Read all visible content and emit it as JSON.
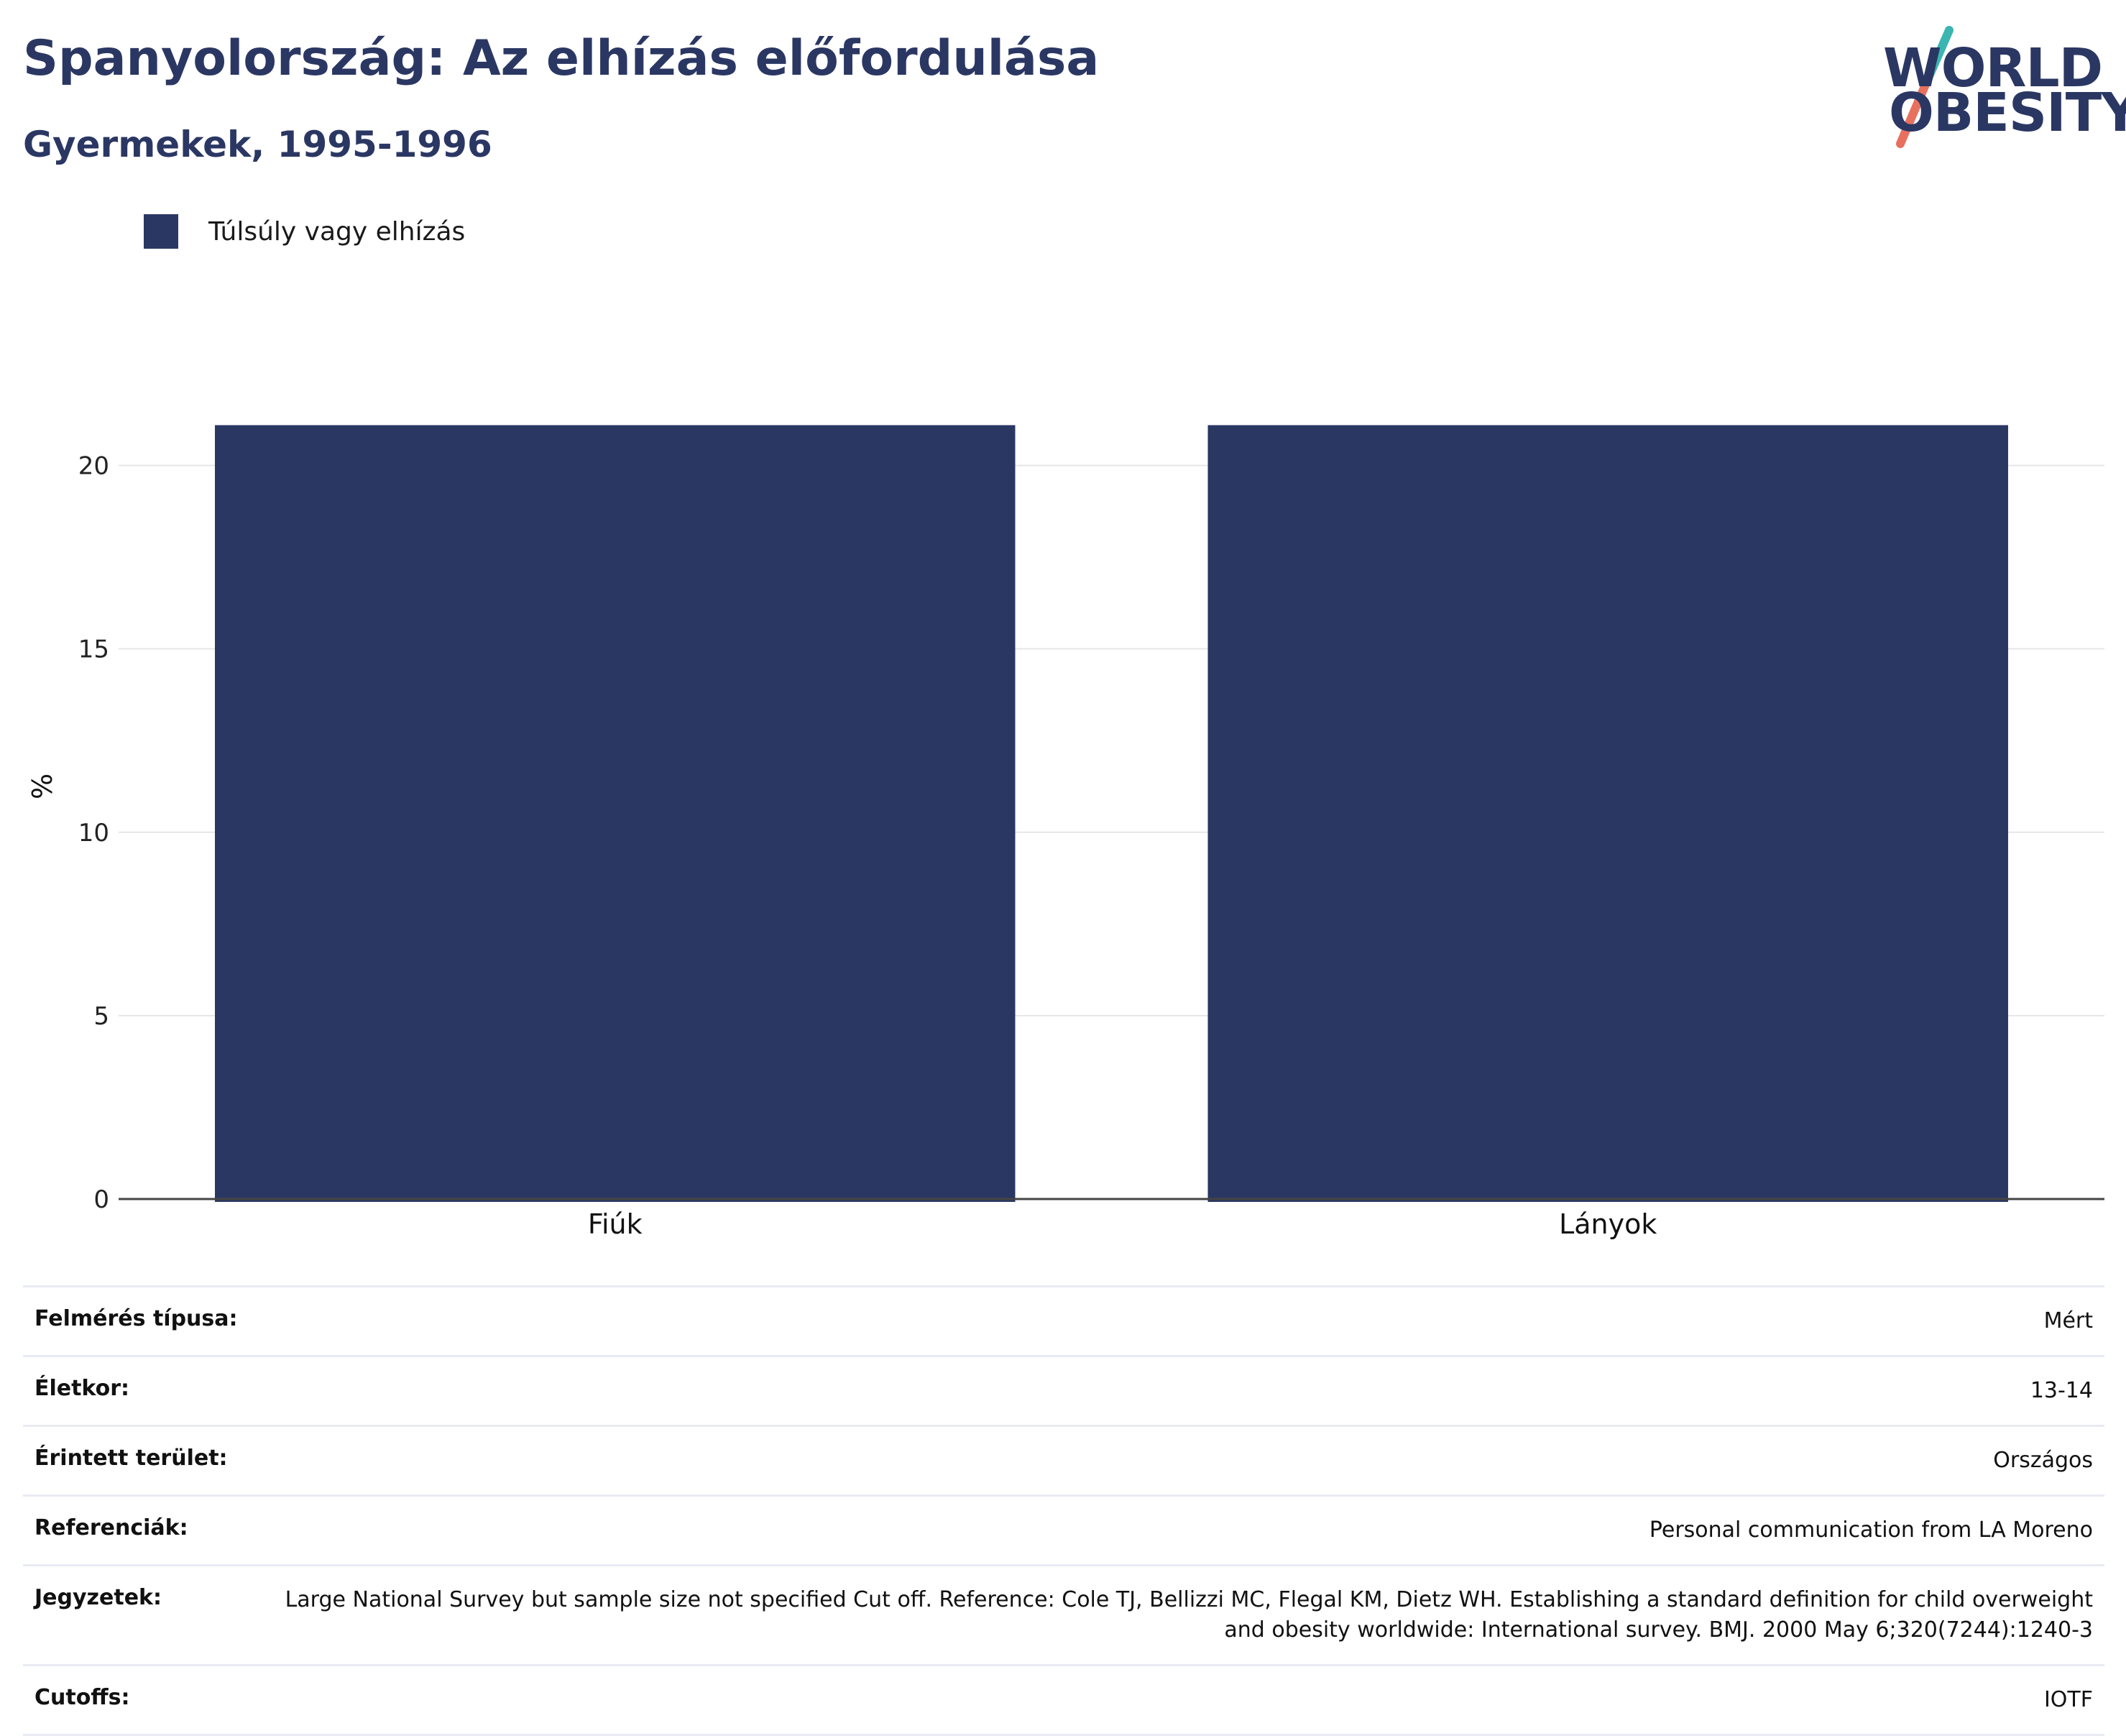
{
  "header": {
    "title": "Spanyolország: Az elhízás előfordulása",
    "subtitle": "Gyermekek, 1995-1996"
  },
  "logo": {
    "line1": "WORLD",
    "line2": "OBESITY",
    "slash_colors": [
      "#3ab5b0",
      "#e8705f"
    ]
  },
  "legend": {
    "label": "Túlsúly vagy elhízás",
    "color": "#2b3763"
  },
  "chart_data": {
    "type": "bar",
    "categories": [
      "Fiúk",
      "Lányok"
    ],
    "series": [
      {
        "name": "Túlsúly vagy elhízás",
        "values": [
          21.1,
          21.1
        ]
      }
    ],
    "xlabel": "",
    "ylabel": "%",
    "ylim": [
      0,
      22.5
    ],
    "yticks": [
      0,
      5,
      10,
      15,
      20
    ],
    "grid": true,
    "legend_position": "top-left",
    "bar_color": "#2b3763"
  },
  "meta": [
    {
      "key": "Felmérés típusa:",
      "value": "Mért"
    },
    {
      "key": "Életkor:",
      "value": "13-14"
    },
    {
      "key": "Érintett terület:",
      "value": "Országos"
    },
    {
      "key": "Referenciák:",
      "value": "Personal communication from LA Moreno"
    },
    {
      "key": "Jegyzetek:",
      "value": "Large National Survey but sample size not specified Cut off. Reference: Cole TJ, Bellizzi MC, Flegal KM, Dietz WH. Establishing a standard definition for child overweight and obesity worldwide: International survey. BMJ. 2000 May 6;320(7244):1240-3"
    },
    {
      "key": "Cutoffs:",
      "value": "IOTF"
    }
  ]
}
